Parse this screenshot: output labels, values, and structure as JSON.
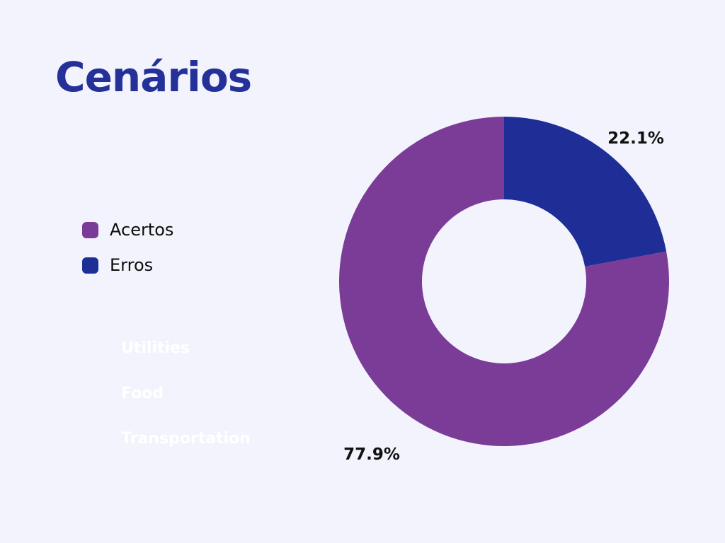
{
  "title": "Cenários",
  "legend": {
    "items": [
      {
        "label": "Acertos",
        "color": "#7b3c98"
      },
      {
        "label": "Erros",
        "color": "#1f2e96"
      }
    ]
  },
  "faded_labels": [
    "Utilities",
    "Food",
    "Transportation"
  ],
  "chart_data": {
    "type": "pie",
    "donut": true,
    "categories": [
      "Acertos",
      "Erros"
    ],
    "values": [
      77.9,
      22.1
    ],
    "colors": [
      "#7b3c98",
      "#1f2e96"
    ],
    "data_labels": [
      "77.9%",
      "22.1%"
    ],
    "title": "Cenários",
    "legend_position": "left"
  }
}
